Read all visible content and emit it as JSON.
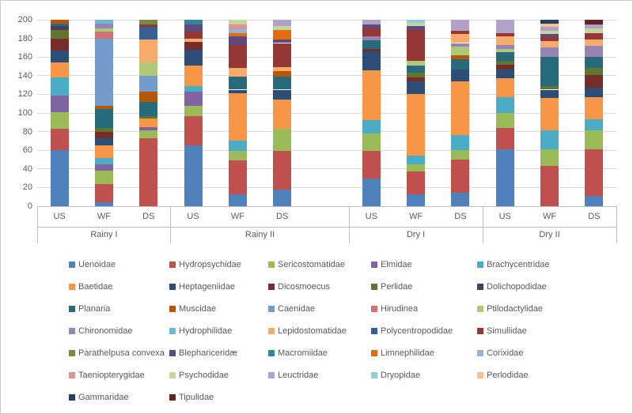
{
  "chart_data": {
    "type": "bar",
    "stacked": true,
    "title": "",
    "xlabel": "",
    "ylabel": "",
    "ylim": [
      0,
      200
    ],
    "yticks": [
      0,
      20,
      40,
      60,
      80,
      100,
      120,
      140,
      160,
      180,
      200
    ],
    "grid": true,
    "legend_position": "bottom",
    "series": [
      {
        "name": "Uenoidae",
        "color": "#4F81BD"
      },
      {
        "name": "Hydropsychidae",
        "color": "#C0504D"
      },
      {
        "name": "Sericostomatidae",
        "color": "#9BBB59"
      },
      {
        "name": "Elmidae",
        "color": "#8064A2"
      },
      {
        "name": "Brachycentridae",
        "color": "#4BACC6"
      },
      {
        "name": "Baetidae",
        "color": "#F79646"
      },
      {
        "name": "Heptageniidae",
        "color": "#2C4D75"
      },
      {
        "name": "Dicosmoecus",
        "color": "#772C2A"
      },
      {
        "name": "Perlidae",
        "color": "#5F7530"
      },
      {
        "name": "Dolichopodidae",
        "color": "#4D3B62"
      },
      {
        "name": "Planaria",
        "color": "#276A7C"
      },
      {
        "name": "Muscidae",
        "color": "#B65708"
      },
      {
        "name": "Caenidae",
        "color": "#729ACA"
      },
      {
        "name": "Hirudinea",
        "color": "#CD7371"
      },
      {
        "name": "Ptilodactylidae",
        "color": "#AFC97A"
      },
      {
        "name": "Chironomidae",
        "color": "#9883B5"
      },
      {
        "name": "Hydrophilidae",
        "color": "#6FB8D2"
      },
      {
        "name": "Lepidostomatidae",
        "color": "#F9AB6B"
      },
      {
        "name": "Polycentropodidae",
        "color": "#366092"
      },
      {
        "name": "Simuliidae",
        "color": "#953735"
      },
      {
        "name": "Parathelpusa convexa",
        "color": "#748C43"
      },
      {
        "name": "Blephariceridæ",
        "color": "#604A7B"
      },
      {
        "name": "Macromiidae",
        "color": "#31859C"
      },
      {
        "name": "Limnephilidae",
        "color": "#E46C0A"
      },
      {
        "name": "Corixidae",
        "color": "#95B3D7"
      },
      {
        "name": "Taeniopterygidae",
        "color": "#D99694"
      },
      {
        "name": "Psychodidae",
        "color": "#C3D69B"
      },
      {
        "name": "Leuctridae",
        "color": "#B3A2C7"
      },
      {
        "name": "Dryopidae",
        "color": "#93CDDD"
      },
      {
        "name": "Perlodidae",
        "color": "#FAC090"
      },
      {
        "name": "Gammaridae",
        "color": "#254061"
      },
      {
        "name": "Tipulidae",
        "color": "#632423"
      }
    ],
    "groups": [
      {
        "label": "Rainy I",
        "slots": 3,
        "bars": [
          {
            "site": "US",
            "stack": [
              [
                "Uenoidae",
                60
              ],
              [
                "Hydropsychidae",
                23
              ],
              [
                "Sericostomatidae",
                18
              ],
              [
                "Elmidae",
                18
              ],
              [
                "Brachycentridae",
                19
              ],
              [
                "Baetidae",
                16
              ],
              [
                "Heptageniidae",
                13
              ],
              [
                "Dicosmoecus",
                13
              ],
              [
                "Perlidae",
                9
              ],
              [
                "Dolichopodidae",
                4
              ],
              [
                "Planaria",
                3
              ],
              [
                "Muscidae",
                4
              ]
            ]
          },
          {
            "site": "WF",
            "stack": [
              [
                "Uenoidae",
                4
              ],
              [
                "Hydropsychidae",
                20
              ],
              [
                "Sericostomatidae",
                14
              ],
              [
                "Elmidae",
                7
              ],
              [
                "Brachycentridae",
                7
              ],
              [
                "Baetidae",
                13
              ],
              [
                "Heptageniidae",
                8
              ],
              [
                "Dicosmoecus",
                7
              ],
              [
                "Perlidae",
                4
              ],
              [
                "Planaria",
                20
              ],
              [
                "Muscidae",
                4
              ],
              [
                "Caenidae",
                72
              ],
              [
                "Hirudinea",
                7
              ],
              [
                "Ptilodactylidae",
                4
              ],
              [
                "Chironomidae",
                5
              ],
              [
                "Hydrophilidae",
                4
              ]
            ]
          },
          {
            "site": "DS",
            "stack": [
              [
                "Hydropsychidae",
                73
              ],
              [
                "Sericostomatidae",
                8
              ],
              [
                "Elmidae",
                4
              ],
              [
                "Baetidae",
                9
              ],
              [
                "Perlidae",
                3
              ],
              [
                "Planaria",
                15
              ],
              [
                "Muscidae",
                11
              ],
              [
                "Caenidae",
                17
              ],
              [
                "Ptilodactylidae",
                14
              ],
              [
                "Lepidostomatidae",
                25
              ],
              [
                "Polycentropodidae",
                13
              ],
              [
                "Simuliidae",
                3
              ],
              [
                "Parathelpusa convexa",
                5
              ]
            ]
          }
        ]
      },
      {
        "label": "Rainy II",
        "slots": 4,
        "bars": [
          {
            "site": "US",
            "stack": [
              [
                "Uenoidae",
                65
              ],
              [
                "Hydropsychidae",
                32
              ],
              [
                "Sericostomatidae",
                11
              ],
              [
                "Elmidae",
                15
              ],
              [
                "Brachycentridae",
                6
              ],
              [
                "Baetidae",
                22
              ],
              [
                "Heptageniidae",
                17
              ],
              [
                "Dicosmoecus",
                8
              ],
              [
                "Lepidostomatidae",
                4
              ],
              [
                "Simuliidae",
                7
              ],
              [
                "Blephariceridæ",
                8
              ],
              [
                "Macromiidae",
                5
              ]
            ]
          },
          {
            "site": "WF",
            "stack": [
              [
                "Uenoidae",
                13
              ],
              [
                "Hydropsychidae",
                36
              ],
              [
                "Sericostomatidae",
                10
              ],
              [
                "Brachycentridae",
                11
              ],
              [
                "Baetidae",
                51
              ],
              [
                "Heptageniidae",
                4
              ],
              [
                "Planaria",
                14
              ],
              [
                "Lepidostomatidae",
                9
              ],
              [
                "Simuliidae",
                25
              ],
              [
                "Blephariceridæ",
                9
              ],
              [
                "Limnephilidae",
                4
              ],
              [
                "Corixidae",
                4
              ],
              [
                "Taeniopterygidae",
                5
              ],
              [
                "Psychodidae",
                5
              ]
            ]
          },
          {
            "site": "DS",
            "stack": [
              [
                "Uenoidae",
                18
              ],
              [
                "Hydropsychidae",
                41
              ],
              [
                "Sericostomatidae",
                24
              ],
              [
                "Baetidae",
                31
              ],
              [
                "Heptageniidae",
                11
              ],
              [
                "Planaria",
                14
              ],
              [
                "Muscidae",
                6
              ],
              [
                "Lepidostomatidae",
                4
              ],
              [
                "Simuliidae",
                26
              ],
              [
                "Blephariceridæ",
                4
              ],
              [
                "Limnephilidae",
                10
              ],
              [
                "Psychodidae",
                4
              ],
              [
                "Leuctridae",
                7
              ]
            ]
          }
        ]
      },
      {
        "label": "Dry I",
        "slots": 3,
        "bars": [
          {
            "site": "US",
            "stack": [
              [
                "Uenoidae",
                30
              ],
              [
                "Hydropsychidae",
                29
              ],
              [
                "Sericostomatidae",
                19
              ],
              [
                "Brachycentridae",
                14
              ],
              [
                "Baetidae",
                54
              ],
              [
                "Heptageniidae",
                20
              ],
              [
                "Dicosmoecus",
                3
              ],
              [
                "Planaria",
                9
              ],
              [
                "Chironomidae",
                4
              ],
              [
                "Simuliidae",
                9
              ],
              [
                "Blephariceridæ",
                4
              ],
              [
                "Leuctridae",
                5
              ]
            ]
          },
          {
            "site": "WF",
            "stack": [
              [
                "Uenoidae",
                13
              ],
              [
                "Hydropsychidae",
                24
              ],
              [
                "Sericostomatidae",
                8
              ],
              [
                "Brachycentridae",
                9
              ],
              [
                "Baetidae",
                66
              ],
              [
                "Heptageniidae",
                14
              ],
              [
                "Dicosmoecus",
                4
              ],
              [
                "Perlidae",
                5
              ],
              [
                "Planaria",
                8
              ],
              [
                "Ptilodactylidae",
                5
              ],
              [
                "Simuliidae",
                33
              ],
              [
                "Blephariceridæ",
                4
              ],
              [
                "Psychodidae",
                4
              ],
              [
                "Dryopidae",
                3
              ]
            ]
          },
          {
            "site": "DS",
            "stack": [
              [
                "Uenoidae",
                14
              ],
              [
                "Hydropsychidae",
                36
              ],
              [
                "Sericostomatidae",
                10
              ],
              [
                "Brachycentridae",
                16
              ],
              [
                "Baetidae",
                58
              ],
              [
                "Heptageniidae",
                13
              ],
              [
                "Planaria",
                11
              ],
              [
                "Muscidae",
                4
              ],
              [
                "Ptilodactylidae",
                9
              ],
              [
                "Chironomidae",
                4
              ],
              [
                "Lepidostomatidae",
                10
              ],
              [
                "Simuliidae",
                3
              ],
              [
                "Leuctridae",
                12
              ]
            ]
          }
        ]
      },
      {
        "label": "Dry II",
        "slots": 3,
        "bars": [
          {
            "site": "US",
            "stack": [
              [
                "Uenoidae",
                61
              ],
              [
                "Hydropsychidae",
                23
              ],
              [
                "Sericostomatidae",
                16
              ],
              [
                "Brachycentridae",
                17
              ],
              [
                "Baetidae",
                20
              ],
              [
                "Heptageniidae",
                10
              ],
              [
                "Dicosmoecus",
                5
              ],
              [
                "Perlidae",
                4
              ],
              [
                "Planaria",
                9
              ],
              [
                "Ptilodactylidae",
                4
              ],
              [
                "Chironomidae",
                4
              ],
              [
                "Lepidostomatidae",
                9
              ],
              [
                "Simuliidae",
                4
              ],
              [
                "Leuctridae",
                14
              ]
            ]
          },
          {
            "site": "WF",
            "stack": [
              [
                "Hydropsychidae",
                43
              ],
              [
                "Sericostomatidae",
                18
              ],
              [
                "Brachycentridae",
                20
              ],
              [
                "Baetidae",
                35
              ],
              [
                "Heptageniidae",
                9
              ],
              [
                "Perlidae",
                4
              ],
              [
                "Planaria",
                31
              ],
              [
                "Chironomidae",
                10
              ],
              [
                "Lepidostomatidae",
                7
              ],
              [
                "Simuliidae",
                4
              ],
              [
                "Blephariceridæ",
                4
              ],
              [
                "Psychodidae",
                3
              ],
              [
                "Leuctridae",
                4
              ],
              [
                "Perlodidae",
                4
              ],
              [
                "Gammaridae",
                4
              ]
            ]
          },
          {
            "site": "DS",
            "stack": [
              [
                "Uenoidae",
                11
              ],
              [
                "Hydropsychidae",
                50
              ],
              [
                "Sericostomatidae",
                20
              ],
              [
                "Brachycentridae",
                12
              ],
              [
                "Baetidae",
                24
              ],
              [
                "Heptageniidae",
                10
              ],
              [
                "Dicosmoecus",
                14
              ],
              [
                "Perlidae",
                7
              ],
              [
                "Planaria",
                12
              ],
              [
                "Chironomidae",
                12
              ],
              [
                "Lepidostomatidae",
                7
              ],
              [
                "Simuliidae",
                7
              ],
              [
                "Psychodidae",
                5
              ],
              [
                "Leuctridae",
                4
              ],
              [
                "Tipulidae",
                5
              ]
            ]
          }
        ]
      }
    ]
  }
}
